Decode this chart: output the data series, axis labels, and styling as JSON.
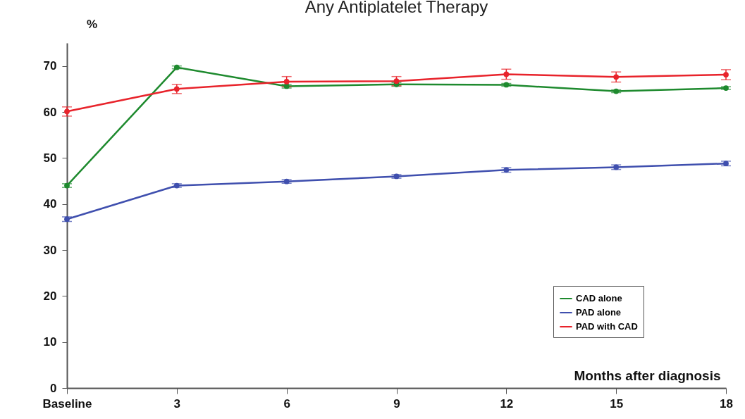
{
  "chart_data": {
    "type": "line",
    "title": "Any Antiplatelet Therapy",
    "xlabel": "Months after diagnosis",
    "ylabel": "%",
    "categories": [
      "Baseline",
      "3",
      "6",
      "9",
      "12",
      "15",
      "18"
    ],
    "series": [
      {
        "name": "CAD alone",
        "color": "#1e8a2e",
        "values": [
          44,
          69.7,
          65.6,
          66,
          65.9,
          64.5,
          65.2
        ],
        "errors": [
          0.4,
          0.3,
          0.4,
          0.4,
          0.3,
          0.3,
          0.3
        ]
      },
      {
        "name": "PAD alone",
        "color": "#3f4fae",
        "values": [
          36.7,
          44,
          44.9,
          46,
          47.4,
          48,
          48.8
        ],
        "errors": [
          0.5,
          0.4,
          0.4,
          0.4,
          0.5,
          0.5,
          0.5
        ]
      },
      {
        "name": "PAD with CAD",
        "color": "#e8232b",
        "values": [
          60.1,
          65,
          66.6,
          66.7,
          68.2,
          67.6,
          68.1
        ],
        "errors": [
          1,
          1,
          1.1,
          1,
          1.1,
          1.1,
          1.1
        ]
      }
    ],
    "ylim": [
      0,
      75
    ],
    "yticks": [
      0,
      10,
      20,
      30,
      40,
      50,
      60,
      70
    ],
    "grid": false,
    "legend": "bottom right",
    "marker": "circle"
  }
}
